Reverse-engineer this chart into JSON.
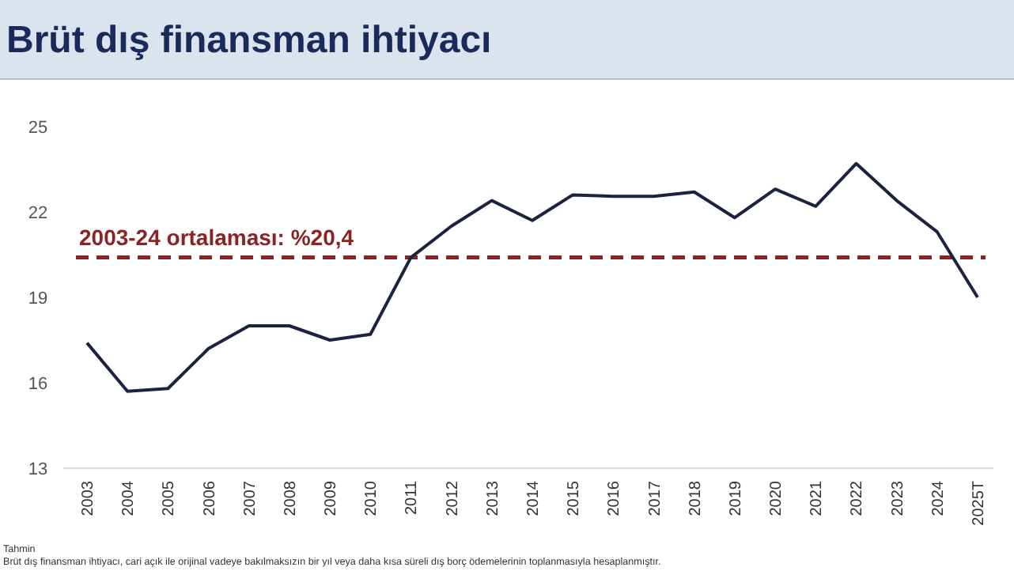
{
  "chart_data": {
    "type": "line",
    "title": "Brüt dış finansman ihtiyacı",
    "categories": [
      "2003",
      "2004",
      "2005",
      "2006",
      "2007",
      "2008",
      "2009",
      "2010",
      "2011",
      "2012",
      "2013",
      "2014",
      "2015",
      "2016",
      "2017",
      "2018",
      "2019",
      "2020",
      "2021",
      "2022",
      "2023",
      "2024",
      "2025T"
    ],
    "series": [
      {
        "color": "#1c2340",
        "values": [
          17.4,
          15.7,
          15.8,
          17.2,
          18.0,
          18.0,
          17.5,
          17.7,
          20.4,
          21.5,
          22.4,
          21.7,
          22.6,
          22.55,
          22.55,
          22.7,
          21.8,
          22.8,
          22.2,
          23.7,
          22.4,
          21.3,
          19.0
        ]
      }
    ],
    "ylim": [
      13,
      25
    ],
    "yticks": [
      13,
      16,
      19,
      22,
      25
    ],
    "grid": false,
    "marker": "none",
    "line_style": "solid",
    "ref_lines": [
      {
        "axis": "y",
        "value": 20.4,
        "label": "2003-24 ortalaması: %20,4",
        "color": "#8b2323",
        "line_style": "dashed"
      }
    ],
    "annotations": [
      "Tahmin",
      "Brüt dış finansman ihtiyacı, cari açık ile orijinal vadeye bakılmaksızın bir yıl veya daha kısa süreli dış borç ödemelerinin toplanmasıyla hesaplanmıştır."
    ]
  }
}
